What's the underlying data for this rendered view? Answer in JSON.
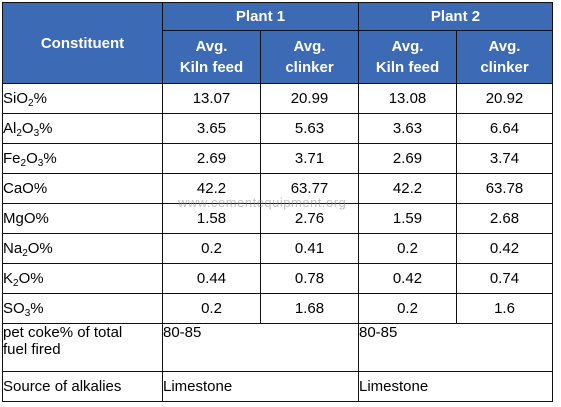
{
  "header": {
    "constituent": "Constituent",
    "plant1": "Plant 1",
    "plant2": "Plant 2",
    "kiln_feed_l1": "Avg.",
    "kiln_feed_l2": "Kiln feed",
    "clinker_l1": "Avg.",
    "clinker_l2": "clinker"
  },
  "rows": [
    {
      "pre": "SiO",
      "s1": "2",
      "mid": "",
      "s2": "",
      "post": "%",
      "v": [
        "13.07",
        "20.99",
        "13.08",
        "20.92"
      ]
    },
    {
      "pre": "Al",
      "s1": "2",
      "mid": "O",
      "s2": "3",
      "post": "%",
      "v": [
        "3.65",
        "5.63",
        "3.63",
        "6.64"
      ]
    },
    {
      "pre": "Fe",
      "s1": "2",
      "mid": "O",
      "s2": "3",
      "post": "%",
      "v": [
        "2.69",
        "3.71",
        "2.69",
        "3.74"
      ]
    },
    {
      "pre": "CaO%",
      "s1": "",
      "mid": "",
      "s2": "",
      "post": "",
      "v": [
        "42.2",
        "63.77",
        "42.2",
        "63.78"
      ]
    },
    {
      "pre": "MgO%",
      "s1": "",
      "mid": "",
      "s2": "",
      "post": "",
      "v": [
        "1.58",
        "2.76",
        "1.59",
        "2.68"
      ]
    },
    {
      "pre": "Na",
      "s1": "2",
      "mid": "",
      "s2": "",
      "post": "O%",
      "v": [
        "0.2",
        "0.41",
        "0.2",
        "0.42"
      ]
    },
    {
      "pre": "K",
      "s1": "2",
      "mid": "",
      "s2": "",
      "post": "O%",
      "v": [
        "0.44",
        "0.78",
        "0.42",
        "0.74"
      ]
    },
    {
      "pre": "SO",
      "s1": "3",
      "mid": "",
      "s2": "",
      "post": "%",
      "v": [
        "0.2",
        "1.68",
        "0.2",
        "1.6"
      ]
    }
  ],
  "pet_coke": {
    "label_l1": "pet coke% of total",
    "label_l2": "fuel fired",
    "plant1": "80-85",
    "plant2": "80-85"
  },
  "alkalies": {
    "label": "Source of alkalies",
    "plant1": "Limestone",
    "plant2": "Limestone"
  },
  "watermark": "www.cementequipment.org",
  "colors": {
    "header_bg": "#3c6ab4",
    "header_text": "#ffffff",
    "border": "#111111"
  }
}
